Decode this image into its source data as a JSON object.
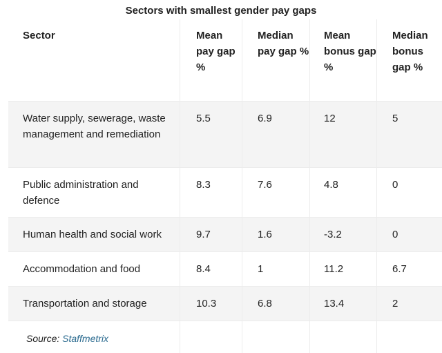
{
  "title": "Sectors with smallest gender pay gaps",
  "table": {
    "headers": [
      "Sector",
      "Mean pay gap %",
      "Median pay gap %",
      "Mean bonus gap %",
      "Median bonus gap %"
    ],
    "rows": [
      [
        "Water supply, sewerage, waste management and remediation",
        "5.5",
        "6.9",
        "12",
        "5"
      ],
      [
        "Public administration and defence",
        "8.3",
        "7.6",
        "4.8",
        "0"
      ],
      [
        "Human health and social work",
        "9.7",
        "1.6",
        "-3.2",
        "0"
      ],
      [
        "Accommodation and food",
        "8.4",
        "1",
        "11.2",
        "6.7"
      ],
      [
        "Transportation and storage",
        "10.3",
        "6.8",
        "13.4",
        "2"
      ]
    ]
  },
  "source": {
    "label": "Source:",
    "link_text": "Staffmetrix",
    "link_color": "#2a6a8f"
  },
  "colors": {
    "row_shade": "#f4f4f4",
    "grid": "#ececec",
    "text": "#222222"
  }
}
